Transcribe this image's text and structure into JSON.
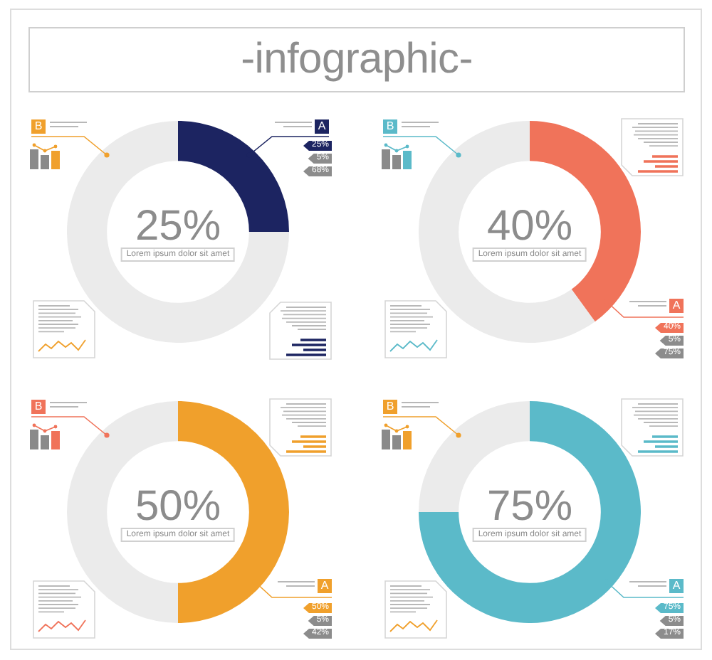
{
  "chart_data": [
    {
      "type": "donut",
      "title": "-infographic-",
      "categories": [
        "A",
        "B"
      ],
      "values": [
        25,
        75
      ],
      "colors": [
        "#1c2461",
        "#ebebeb"
      ],
      "value_labels": [
        "25%",
        null
      ],
      "annotations": [
        "Lorem ipsum dolor sit amet",
        "25%",
        "5%",
        "68%"
      ]
    },
    {
      "type": "donut",
      "categories": [
        "A",
        "B"
      ],
      "values": [
        40,
        60
      ],
      "colors": [
        "#f0735a",
        "#ebebeb"
      ],
      "value_labels": [
        "40%",
        null
      ],
      "annotations": [
        "Lorem ipsum dolor sit amet",
        "40%",
        "5%",
        "75%"
      ]
    },
    {
      "type": "donut",
      "categories": [
        "A",
        "B"
      ],
      "values": [
        50,
        50
      ],
      "colors": [
        "#f0a02c",
        "#ebebeb"
      ],
      "value_labels": [
        "50%",
        null
      ],
      "annotations": [
        "Lorem ipsum dolor sit amet",
        "50%",
        "5%",
        "42%"
      ]
    },
    {
      "type": "donut",
      "categories": [
        "A",
        "B"
      ],
      "values": [
        75,
        25
      ],
      "colors": [
        "#5bbac9",
        "#ebebeb"
      ],
      "value_labels": [
        "75%",
        null
      ],
      "annotations": [
        "Lorem ipsum dolor sit amet",
        "75%",
        "5%",
        "17%"
      ]
    }
  ]
}
